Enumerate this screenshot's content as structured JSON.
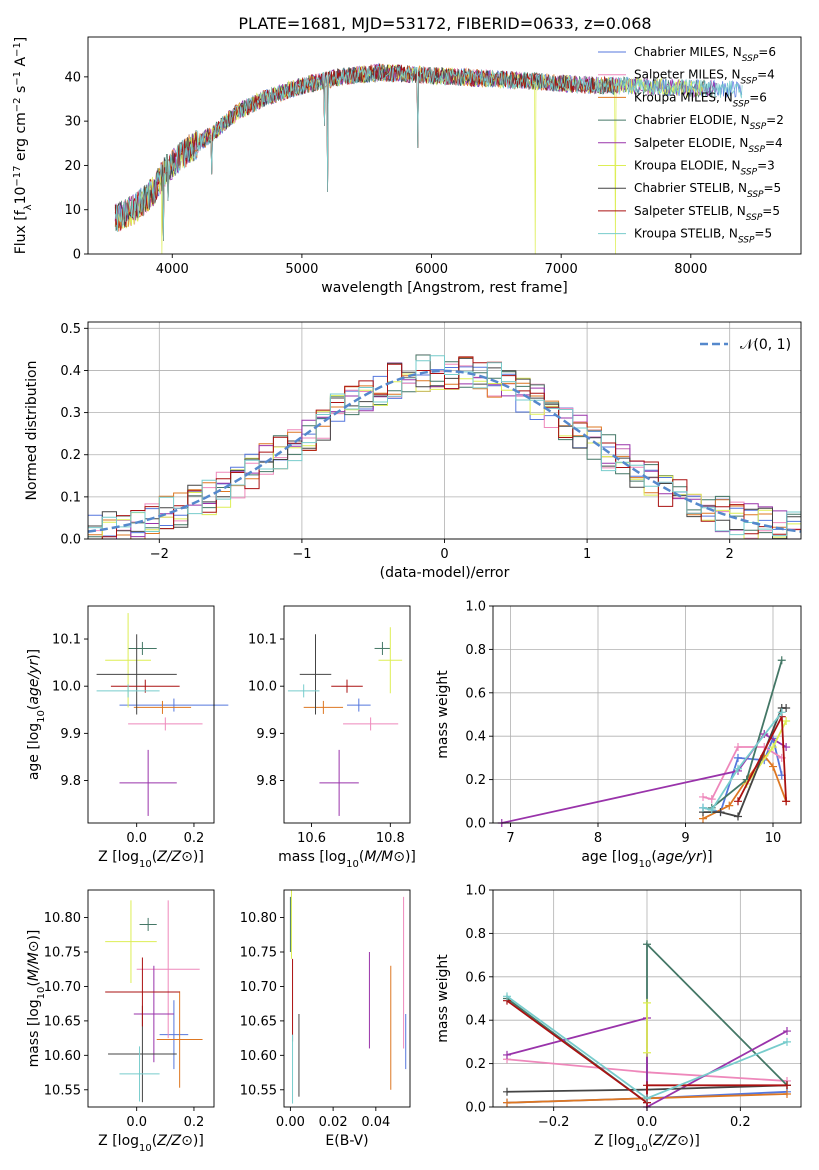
{
  "chart_data": [
    {
      "id": "spectrum",
      "type": "line",
      "title": "PLATE=1681, MJD=53172, FIBERID=0633, z=0.068",
      "xlabel": "wavelength [Angstrom, rest frame]",
      "ylabel_parts": {
        "a": "Flux [f",
        "b": "λ",
        "c": "10",
        "d": "−17",
        "e": " erg cm",
        "f": "−2",
        "g": " s",
        "h": "−1",
        "i": " A",
        "j": "−1",
        "k": "]"
      },
      "xlim": [
        3350,
        8850
      ],
      "ylim": [
        0,
        49
      ],
      "xticks": [
        4000,
        5000,
        6000,
        7000,
        8000
      ],
      "yticks": [
        0,
        10,
        20,
        30,
        40
      ],
      "continuum": {
        "x": [
          3560,
          3700,
          3850,
          3950,
          4100,
          4300,
          4500,
          4700,
          5000,
          5300,
          5600,
          5900,
          6200,
          6500,
          6800,
          7000,
          7300,
          7600,
          7900,
          8200,
          8500,
          8850
        ],
        "y": [
          8,
          10,
          14,
          19,
          23,
          27,
          32,
          35,
          38,
          40,
          41,
          40.5,
          40,
          39.5,
          39,
          38.5,
          38,
          38,
          37.5,
          37.3,
          37,
          37
        ]
      },
      "dips": [
        {
          "x": 3933,
          "y": 3
        },
        {
          "x": 3968,
          "y": 12
        },
        {
          "x": 4305,
          "y": 18
        },
        {
          "x": 5175,
          "y": 29
        },
        {
          "x": 5893,
          "y": 24
        },
        {
          "x": 6800,
          "y": 0
        },
        {
          "x": 7420,
          "y": 0
        },
        {
          "x": 5200,
          "y": 14
        }
      ],
      "legend": {
        "location": "upper right",
        "entries": [
          {
            "label": "Chabrier MILES",
            "n": "6",
            "color": "#5577dd"
          },
          {
            "label": "Salpeter MILES",
            "n": "4",
            "color": "#ee88bb"
          },
          {
            "label": "Kroupa MILES",
            "n": "6",
            "color": "#dd7722"
          },
          {
            "label": "Chabrier ELODIE",
            "n": "2",
            "color": "#447766"
          },
          {
            "label": "Salpeter ELODIE",
            "n": "4",
            "color": "#9933aa"
          },
          {
            "label": "Kroupa ELODIE",
            "n": "3",
            "color": "#ddee55"
          },
          {
            "label": "Chabrier STELIB",
            "n": "5",
            "color": "#444444"
          },
          {
            "label": "Salpeter STELIB",
            "n": "5",
            "color": "#aa1111"
          },
          {
            "label": "Kroupa STELIB",
            "n": "5",
            "color": "#77cccc"
          }
        ],
        "sub": "SSP",
        "prefix": "N"
      }
    },
    {
      "id": "residuals",
      "type": "step",
      "xlabel": "(data-model)/error",
      "ylabel": "Normed distribution",
      "xlim": [
        -2.5,
        2.5
      ],
      "ylim": [
        0,
        0.515
      ],
      "xticks": [
        -2,
        -1,
        0,
        1,
        2
      ],
      "yticks": [
        0.0,
        0.1,
        0.2,
        0.3,
        0.4,
        0.5
      ],
      "grid": true,
      "legend": {
        "label": "𝒩(0, 1)",
        "color": "#5588cc",
        "location": "upper right"
      }
    },
    {
      "id": "age_vs_Z",
      "type": "errorbar",
      "xlabel": "Z [log10(Z/Z⊙)]",
      "ylabel": "age  [log10(age/yr)]",
      "xlim": [
        -0.17,
        0.27
      ],
      "ylim": [
        9.71,
        10.17
      ],
      "xticks": [
        0.0,
        0.2
      ],
      "yticks": [
        9.8,
        9.9,
        10.0,
        10.1
      ],
      "points": [
        {
          "x": 0.13,
          "xerr": 0.19,
          "y": 9.96,
          "yerr": 0.0,
          "color": "#5577dd"
        },
        {
          "x": 0.1,
          "xerr": 0.13,
          "y": 9.92,
          "yerr": 0.0,
          "color": "#ee88bb"
        },
        {
          "x": 0.09,
          "xerr": 0.1,
          "y": 9.955,
          "yerr": 0.0,
          "color": "#dd7722"
        },
        {
          "x": 0.02,
          "xerr": 0.05,
          "y": 10.08,
          "yerr": 0.0,
          "color": "#447766"
        },
        {
          "x": 0.04,
          "xerr": 0.1,
          "y": 9.795,
          "yerr": 0.07,
          "color": "#9933aa"
        },
        {
          "x": -0.03,
          "xerr": 0.08,
          "y": 10.055,
          "yerr": 0.1,
          "color": "#ddee55"
        },
        {
          "x": 0.0,
          "xerr": 0.14,
          "y": 10.025,
          "yerr": 0.085,
          "color": "#444444"
        },
        {
          "x": 0.03,
          "xerr": 0.12,
          "y": 10.0,
          "yerr": 0.0,
          "color": "#aa1111"
        },
        {
          "x": -0.03,
          "xerr": 0.11,
          "y": 9.99,
          "yerr": 0.0,
          "color": "#77cccc"
        }
      ]
    },
    {
      "id": "age_vs_mass",
      "type": "errorbar",
      "xlabel": "mass [log10(M/M⊙)]",
      "xlim": [
        10.53,
        10.85
      ],
      "ylim": [
        9.71,
        10.17
      ],
      "xticks": [
        10.6,
        10.8
      ],
      "yticks": [
        9.8,
        9.9,
        10.0,
        10.1
      ],
      "points": [
        {
          "x": 10.72,
          "xerr": 0.03,
          "y": 9.96,
          "yerr": 0.0,
          "color": "#5577dd"
        },
        {
          "x": 10.75,
          "xerr": 0.07,
          "y": 9.92,
          "yerr": 0.0,
          "color": "#ee88bb"
        },
        {
          "x": 10.63,
          "xerr": 0.05,
          "y": 9.955,
          "yerr": 0.0,
          "color": "#dd7722"
        },
        {
          "x": 10.78,
          "xerr": 0.02,
          "y": 10.08,
          "yerr": 0.0,
          "color": "#447766"
        },
        {
          "x": 10.67,
          "xerr": 0.05,
          "y": 9.795,
          "yerr": 0.07,
          "color": "#9933aa"
        },
        {
          "x": 10.8,
          "xerr": 0.03,
          "y": 10.055,
          "yerr": 0.07,
          "color": "#ddee55"
        },
        {
          "x": 10.61,
          "xerr": 0.04,
          "y": 10.025,
          "yerr": 0.085,
          "color": "#444444"
        },
        {
          "x": 10.69,
          "xerr": 0.04,
          "y": 10.0,
          "yerr": 0.0,
          "color": "#aa1111"
        },
        {
          "x": 10.58,
          "xerr": 0.04,
          "y": 9.99,
          "yerr": 0.0,
          "color": "#77cccc"
        }
      ]
    },
    {
      "id": "weight_vs_age",
      "type": "line",
      "xlabel": "age  [log10(age/yr)]",
      "ylabel": "mass weight",
      "xlim": [
        6.8,
        10.32
      ],
      "ylim": [
        0,
        1
      ],
      "xticks": [
        7,
        8,
        9,
        10
      ],
      "yticks": [
        0.0,
        0.2,
        0.4,
        0.6,
        0.8,
        1.0
      ],
      "grid": true,
      "series": [
        {
          "color": "#5577dd",
          "x": [
            9.2,
            9.4,
            9.6,
            9.9,
            10.0,
            10.1
          ],
          "y": [
            0.07,
            0.05,
            0.3,
            0.29,
            0.39,
            0.22
          ]
        },
        {
          "color": "#ee88bb",
          "x": [
            9.2,
            9.3,
            9.6,
            9.9,
            10.1
          ],
          "y": [
            0.12,
            0.11,
            0.35,
            0.35,
            0.3
          ]
        },
        {
          "color": "#dd7722",
          "x": [
            9.2,
            9.5,
            9.7,
            9.9,
            10.0,
            10.15
          ],
          "y": [
            0.02,
            0.08,
            0.2,
            0.31,
            0.26,
            0.1
          ]
        },
        {
          "color": "#447766",
          "x": [
            9.3,
            9.7,
            10.1
          ],
          "y": [
            0.07,
            0.2,
            0.75
          ]
        },
        {
          "color": "#9933aa",
          "x": [
            6.9,
            9.6,
            9.9,
            10.15
          ],
          "y": [
            0.0,
            0.24,
            0.41,
            0.35
          ]
        },
        {
          "color": "#ddee55",
          "x": [
            9.7,
            10.0,
            10.15
          ],
          "y": [
            0.18,
            0.35,
            0.47
          ]
        },
        {
          "color": "#444444",
          "x": [
            9.2,
            9.4,
            9.6,
            10.1,
            10.15
          ],
          "y": [
            0.05,
            0.05,
            0.03,
            0.53,
            0.53
          ]
        },
        {
          "color": "#aa1111",
          "x": [
            9.6,
            10.1,
            10.15
          ],
          "y": [
            0.1,
            0.49,
            0.1
          ]
        },
        {
          "color": "#77cccc",
          "x": [
            9.2,
            9.3,
            9.6,
            10.1
          ],
          "y": [
            0.07,
            0.06,
            0.25,
            0.51
          ]
        }
      ]
    },
    {
      "id": "mass_vs_Z",
      "type": "errorbar",
      "xlabel": "Z [log10(Z/Z⊙)]",
      "ylabel": "mass [log10(M/M⊙)]",
      "xlim": [
        -0.17,
        0.27
      ],
      "ylim": [
        10.525,
        10.84
      ],
      "xticks": [
        0.0,
        0.2
      ],
      "yticks": [
        10.55,
        10.6,
        10.65,
        10.7,
        10.75,
        10.8
      ],
      "points": [
        {
          "x": 0.13,
          "xerr": 0.05,
          "y": 10.63,
          "yerr": 0.05,
          "color": "#5577dd"
        },
        {
          "x": 0.11,
          "xerr": 0.11,
          "y": 10.725,
          "yerr": 0.1,
          "color": "#ee88bb"
        },
        {
          "x": 0.15,
          "xerr": 0.08,
          "y": 10.623,
          "yerr": 0.07,
          "color": "#dd7722"
        },
        {
          "x": 0.04,
          "xerr": 0.03,
          "y": 10.79,
          "yerr": 0.0,
          "color": "#447766"
        },
        {
          "x": 0.06,
          "xerr": 0.07,
          "y": 10.66,
          "yerr": 0.07,
          "color": "#9933aa"
        },
        {
          "x": -0.02,
          "xerr": 0.09,
          "y": 10.765,
          "yerr": 0.06,
          "color": "#ddee55"
        },
        {
          "x": 0.02,
          "xerr": 0.12,
          "y": 10.602,
          "yerr": 0.07,
          "color": "#444444"
        },
        {
          "x": 0.02,
          "xerr": 0.13,
          "y": 10.692,
          "yerr": 0.05,
          "color": "#aa1111"
        },
        {
          "x": 0.01,
          "xerr": 0.07,
          "y": 10.573,
          "yerr": 0.04,
          "color": "#77cccc"
        }
      ]
    },
    {
      "id": "mass_vs_ebv",
      "type": "errorbar",
      "xlabel": "E(B-V)",
      "xlim": [
        -0.003,
        0.056
      ],
      "ylim": [
        10.525,
        10.84
      ],
      "xticks": [
        0.0,
        0.02,
        0.04
      ],
      "yticks": [
        10.55,
        10.6,
        10.65,
        10.7,
        10.75,
        10.8
      ],
      "points": [
        {
          "x": 0.054,
          "xerr": 0.0,
          "y": 10.62,
          "yerr": 0.04,
          "color": "#5577dd"
        },
        {
          "x": 0.053,
          "xerr": 0.0,
          "y": 10.72,
          "yerr": 0.11,
          "color": "#ee88bb"
        },
        {
          "x": 0.047,
          "xerr": 0.0,
          "y": 10.64,
          "yerr": 0.09,
          "color": "#dd7722"
        },
        {
          "x": 0.0,
          "xerr": 0.0,
          "y": 10.79,
          "yerr": 0.04,
          "color": "#447766"
        },
        {
          "x": 0.037,
          "xerr": 0.0,
          "y": 10.68,
          "yerr": 0.07,
          "color": "#9933aa"
        },
        {
          "x": 0.0005,
          "xerr": 0.0,
          "y": 10.79,
          "yerr": 0.05,
          "color": "#ddee55"
        },
        {
          "x": 0.004,
          "xerr": 0.0,
          "y": 10.6,
          "yerr": 0.06,
          "color": "#444444"
        },
        {
          "x": 0.001,
          "xerr": 0.0,
          "y": 10.68,
          "yerr": 0.06,
          "color": "#aa1111"
        },
        {
          "x": 0.001,
          "xerr": 0.0,
          "y": 10.58,
          "yerr": 0.05,
          "color": "#77cccc"
        }
      ]
    },
    {
      "id": "weight_vs_Z",
      "type": "line",
      "xlabel": "Z [log10(Z/Z⊙)]",
      "ylabel": "mass weight",
      "xlim": [
        -0.33,
        0.33
      ],
      "ylim": [
        0,
        1
      ],
      "xticks": [
        -0.2,
        0.0,
        0.2
      ],
      "yticks": [
        0.0,
        0.2,
        0.4,
        0.6,
        0.8,
        1.0
      ],
      "grid": true,
      "series": [
        {
          "color": "#5577dd",
          "x": [
            -0.3,
            0.0,
            0.3
          ],
          "y": [
            0.02,
            0.04,
            0.07
          ]
        },
        {
          "color": "#ee88bb",
          "x": [
            -0.3,
            0.0,
            0.3
          ],
          "y": [
            0.22,
            0.16,
            0.12
          ]
        },
        {
          "color": "#dd7722",
          "x": [
            -0.3,
            0.0,
            0.3
          ],
          "y": [
            0.02,
            0.04,
            0.06
          ]
        },
        {
          "color": "#447766",
          "x": [
            -0.3,
            0.0,
            0.0,
            0.3
          ],
          "y": [
            0.5,
            0.02,
            0.75,
            0.1
          ]
        },
        {
          "color": "#9933aa",
          "x": [
            -0.3,
            0.0,
            0.0,
            0.3
          ],
          "y": [
            0.24,
            0.41,
            0.0,
            0.35
          ]
        },
        {
          "color": "#ddee55",
          "x": [
            0.0,
            0.0
          ],
          "y": [
            0.25,
            0.48
          ]
        },
        {
          "color": "#444444",
          "x": [
            -0.3,
            0.0,
            0.3
          ],
          "y": [
            0.07,
            0.08,
            0.1
          ]
        },
        {
          "color": "#aa1111",
          "x": [
            -0.3,
            0.0,
            0.0,
            0.3
          ],
          "y": [
            0.49,
            0.02,
            0.1,
            0.1
          ]
        },
        {
          "color": "#77cccc",
          "x": [
            -0.3,
            0.0,
            0.3
          ],
          "y": [
            0.51,
            0.04,
            0.3
          ]
        }
      ]
    }
  ]
}
